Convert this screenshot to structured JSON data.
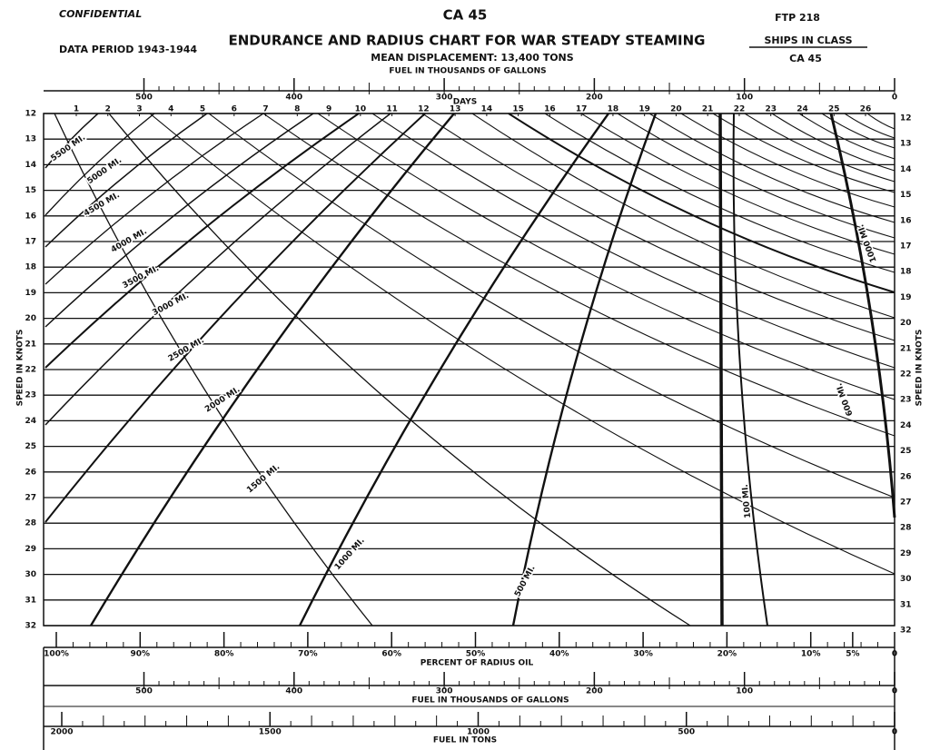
{
  "header": {
    "classification": "CONFIDENTIAL",
    "ship": "CA 45",
    "ftp": "FTP 218",
    "data_period": "DATA PERIOD 1943-1944",
    "title": "ENDURANCE AND RADIUS CHART FOR WAR STEADY STEAMING",
    "ships_in_class_label": "SHIPS IN CLASS",
    "ships_in_class": "CA 45",
    "displacement": "MEAN DISPLACEMENT: 13,400 TONS"
  },
  "top_fuel_scale": {
    "title": "FUEL IN THOUSANDS OF GALLONS",
    "labels": [
      500,
      400,
      300,
      200,
      100,
      0
    ]
  },
  "days_scale": {
    "title": "DAYS",
    "labels": [
      1,
      2,
      3,
      4,
      5,
      6,
      7,
      8,
      9,
      10,
      11,
      12,
      13,
      14,
      15,
      16,
      17,
      18,
      19,
      20,
      21,
      22,
      23,
      24,
      25,
      26
    ]
  },
  "speed_axis": {
    "title": "SPEED IN KNOTS",
    "values": [
      12,
      13,
      14,
      15,
      16,
      17,
      18,
      19,
      20,
      21,
      22,
      23,
      24,
      25,
      26,
      27,
      28,
      29,
      30,
      31,
      32
    ]
  },
  "radius_curves": [
    "5500 MI.",
    "5000 MI.",
    "4500 MI.",
    "4000 MI.",
    "3500 MI.",
    "3000 MI.",
    "2500 MI.",
    "2000 MI.",
    "1500 MI.",
    "1000 MI.",
    "500 MI.",
    "100 MI.",
    "1000 MI.",
    "600 MI."
  ],
  "percent_scale": {
    "title": "PERCENT OF RADIUS OIL",
    "labels": [
      {
        "value": 100,
        "label": "100%"
      },
      {
        "value": 90,
        "label": "90%"
      },
      {
        "value": 80,
        "label": "80%"
      },
      {
        "value": 70,
        "label": "70%"
      },
      {
        "value": 60,
        "label": "60%"
      },
      {
        "value": 50,
        "label": "50%"
      },
      {
        "value": 40,
        "label": "40%"
      },
      {
        "value": 30,
        "label": "30%"
      },
      {
        "value": 20,
        "label": "20%"
      },
      {
        "value": 10,
        "label": "10%"
      },
      {
        "value": 5,
        "label": "5%"
      },
      0
    ]
  },
  "bottom_fuel_scale": {
    "title": "FUEL IN THOUSANDS OF GALLONS",
    "labels": [
      500,
      400,
      300,
      200,
      100,
      0
    ]
  },
  "tons_scale": {
    "title": "FUEL IN TONS",
    "labels": [
      2000,
      1500,
      1000,
      500,
      0
    ]
  }
}
